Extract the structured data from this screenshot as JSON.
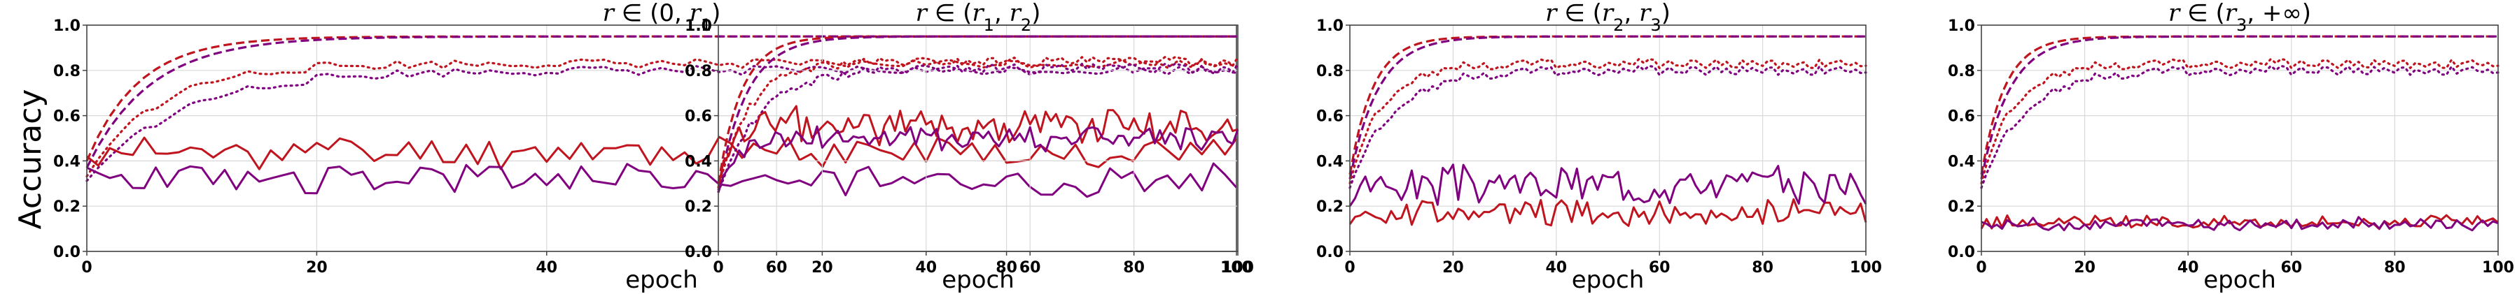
{
  "figure": {
    "ylabel": "Accuracy",
    "xlabel": "epoch"
  },
  "colors": {
    "red": "#c0141e",
    "purple": "#800080",
    "grid": "#d9d9d9"
  },
  "chart_data": [
    {
      "type": "line",
      "title": "r ∈ (0, r₁)",
      "title_parts": {
        "var": "r",
        "rest": " ∈ (0, ",
        "sub_base": "r",
        "sub": "1",
        "end": ")"
      },
      "xlabel": "epoch",
      "ylabel": "Accuracy",
      "xlim": [
        0,
        100
      ],
      "ylim": [
        0,
        1
      ],
      "xticks": [
        0,
        20,
        40,
        60,
        80,
        100
      ],
      "yticks": [
        0.0,
        0.2,
        0.4,
        0.6,
        0.8,
        1.0
      ],
      "grid": true,
      "series": [
        {
          "color": "red",
          "style": "dashed",
          "curve": {
            "start": 0.4,
            "end": 0.95,
            "tau": 4.5
          }
        },
        {
          "color": "purple",
          "style": "dashed",
          "curve": {
            "start": 0.37,
            "end": 0.95,
            "tau": 5.5
          }
        },
        {
          "color": "red",
          "style": "dotted",
          "curve": {
            "start": 0.33,
            "end": 0.83,
            "tau": 6.0,
            "noise": 0.02
          }
        },
        {
          "color": "purple",
          "style": "dotted",
          "curve": {
            "start": 0.31,
            "end": 0.8,
            "tau": 8.0,
            "noise": 0.02
          }
        },
        {
          "color": "red",
          "style": "solid",
          "noisy": {
            "mean": 0.44,
            "amp": 0.06,
            "seed": 11,
            "first": 0.42
          }
        },
        {
          "color": "purple",
          "style": "solid",
          "noisy": {
            "mean": 0.32,
            "amp": 0.06,
            "seed": 23,
            "first": 0.37
          }
        }
      ]
    },
    {
      "type": "line",
      "title": "r ∈ (r₁, r₂)",
      "title_parts": {
        "var": "r",
        "rest": " ∈ (",
        "pre_base": "r",
        "pre_sub": "1",
        "mid": ", ",
        "sub_base": "r",
        "sub": "2",
        "end": ")"
      },
      "xlabel": "epoch",
      "xlim": [
        0,
        100
      ],
      "ylim": [
        0,
        1
      ],
      "xticks": [
        0,
        20,
        40,
        60,
        80,
        100
      ],
      "yticks": [
        0.0,
        0.2,
        0.4,
        0.6,
        0.8,
        1.0
      ],
      "grid": true,
      "series": [
        {
          "color": "red",
          "style": "dashed",
          "curve": {
            "start": 0.3,
            "end": 0.95,
            "tau": 4.5
          }
        },
        {
          "color": "purple",
          "style": "dashed",
          "curve": {
            "start": 0.27,
            "end": 0.95,
            "tau": 5.5
          }
        },
        {
          "color": "red",
          "style": "dotted",
          "curve": {
            "start": 0.28,
            "end": 0.84,
            "tau": 6.0,
            "noise": 0.02
          }
        },
        {
          "color": "purple",
          "style": "dotted",
          "curve": {
            "start": 0.26,
            "end": 0.81,
            "tau": 8.0,
            "noise": 0.02
          }
        },
        {
          "color": "red",
          "style": "solid",
          "noisy": {
            "mean": 0.56,
            "amp": 0.07,
            "seed": 37,
            "first": 0.28,
            "rise": 8
          }
        },
        {
          "color": "purple",
          "style": "solid",
          "noisy": {
            "mean": 0.5,
            "amp": 0.05,
            "seed": 41,
            "first": 0.26,
            "rise": 8
          }
        }
      ]
    },
    {
      "type": "line",
      "title": "r ∈ (r₂, r₃)",
      "title_parts": {
        "var": "r",
        "rest": " ∈ (",
        "pre_base": "r",
        "pre_sub": "2",
        "mid": ", ",
        "sub_base": "r",
        "sub": "3",
        "end": ")"
      },
      "xlabel": "epoch",
      "xlim": [
        0,
        100
      ],
      "ylim": [
        0,
        1
      ],
      "xticks": [
        0,
        20,
        40,
        60,
        80,
        100
      ],
      "yticks": [
        0.0,
        0.2,
        0.4,
        0.6,
        0.8,
        1.0
      ],
      "grid": true,
      "series": [
        {
          "color": "red",
          "style": "dashed",
          "curve": {
            "start": 0.34,
            "end": 0.95,
            "tau": 4.5
          }
        },
        {
          "color": "purple",
          "style": "dashed",
          "curve": {
            "start": 0.32,
            "end": 0.95,
            "tau": 5.5
          }
        },
        {
          "color": "red",
          "style": "dotted",
          "curve": {
            "start": 0.3,
            "end": 0.83,
            "tau": 6.0,
            "noise": 0.02
          }
        },
        {
          "color": "purple",
          "style": "dotted",
          "curve": {
            "start": 0.28,
            "end": 0.8,
            "tau": 8.0,
            "noise": 0.02
          }
        },
        {
          "color": "red",
          "style": "solid",
          "noisy": {
            "mean": 0.17,
            "amp": 0.05,
            "seed": 53,
            "first": 0.12
          }
        },
        {
          "color": "purple",
          "style": "solid",
          "noisy": {
            "mean": 0.3,
            "amp": 0.07,
            "seed": 67,
            "first": 0.2
          }
        }
      ]
    },
    {
      "type": "line",
      "title": "r ∈ (r₃, +∞)",
      "title_parts": {
        "var": "r",
        "rest": " ∈ (",
        "pre_base": "r",
        "pre_sub": "3",
        "mid": ", +∞",
        "end": ")"
      },
      "xlabel": "epoch",
      "xlim": [
        0,
        100
      ],
      "ylim": [
        0,
        1
      ],
      "xticks": [
        0,
        20,
        40,
        60,
        80,
        100
      ],
      "yticks": [
        0.0,
        0.2,
        0.4,
        0.6,
        0.8,
        1.0
      ],
      "grid": true,
      "series": [
        {
          "color": "red",
          "style": "dashed",
          "curve": {
            "start": 0.34,
            "end": 0.95,
            "tau": 4.5
          }
        },
        {
          "color": "purple",
          "style": "dashed",
          "curve": {
            "start": 0.32,
            "end": 0.95,
            "tau": 5.5
          }
        },
        {
          "color": "red",
          "style": "dotted",
          "curve": {
            "start": 0.3,
            "end": 0.83,
            "tau": 6.0,
            "noise": 0.02
          }
        },
        {
          "color": "purple",
          "style": "dotted",
          "curve": {
            "start": 0.28,
            "end": 0.8,
            "tau": 8.0,
            "noise": 0.02
          }
        },
        {
          "color": "red",
          "style": "solid",
          "noisy": {
            "mean": 0.13,
            "amp": 0.025,
            "seed": 79,
            "first": 0.1
          }
        },
        {
          "color": "purple",
          "style": "solid",
          "noisy": {
            "mean": 0.12,
            "amp": 0.025,
            "seed": 83,
            "first": 0.13
          }
        }
      ]
    }
  ]
}
